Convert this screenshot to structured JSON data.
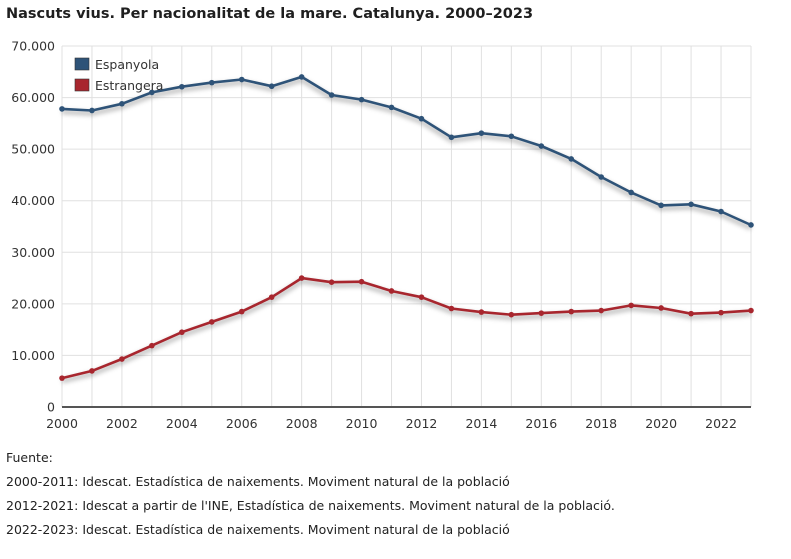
{
  "title": "Nascuts vius. Per nacionalitat de la mare. Catalunya. 2000–2023",
  "chart_data": {
    "type": "line",
    "title": "Nascuts vius. Per nacionalitat de la mare. Catalunya. 2000–2023",
    "x": [
      2000,
      2001,
      2002,
      2003,
      2004,
      2005,
      2006,
      2007,
      2008,
      2009,
      2010,
      2011,
      2012,
      2013,
      2014,
      2015,
      2016,
      2017,
      2018,
      2019,
      2020,
      2021,
      2022,
      2023
    ],
    "x_tick_labels": [
      "2000",
      "2002",
      "2004",
      "2006",
      "2008",
      "2010",
      "2012",
      "2014",
      "2016",
      "2018",
      "2020",
      "2022"
    ],
    "y_tick_labels": [
      "0",
      "10.000",
      "20.000",
      "30.000",
      "40.000",
      "50.000",
      "60.000",
      "70.000"
    ],
    "ylim": [
      0,
      70000
    ],
    "xlim": [
      2000,
      2023
    ],
    "grid": true,
    "legend_position": "top-left",
    "series": [
      {
        "name": "Espanyola",
        "color": "#2e5378",
        "values": [
          57800,
          57500,
          58800,
          61000,
          62100,
          62900,
          63500,
          62200,
          64000,
          60500,
          59600,
          58100,
          55900,
          52300,
          53100,
          52500,
          50600,
          48100,
          44600,
          41600,
          39100,
          39300,
          37900,
          35300
        ]
      },
      {
        "name": "Estrangera",
        "color": "#a8262e",
        "values": [
          5600,
          7000,
          9300,
          11900,
          14500,
          16500,
          18500,
          21300,
          25000,
          24200,
          24300,
          22500,
          21300,
          19100,
          18400,
          17900,
          18200,
          18500,
          18700,
          19700,
          19200,
          18100,
          18300,
          18700
        ]
      }
    ]
  },
  "footer": {
    "heading": "Fuente:",
    "lines": [
      "2000-2011: Idescat. Estadística de naixements. Moviment natural de la població",
      "2012-2021: Idescat a partir de l'INE, Estadística de naixements. Moviment natural de la població.",
      "2022-2023: Idescat. Estadística de naixements. Moviment natural de la població"
    ]
  }
}
